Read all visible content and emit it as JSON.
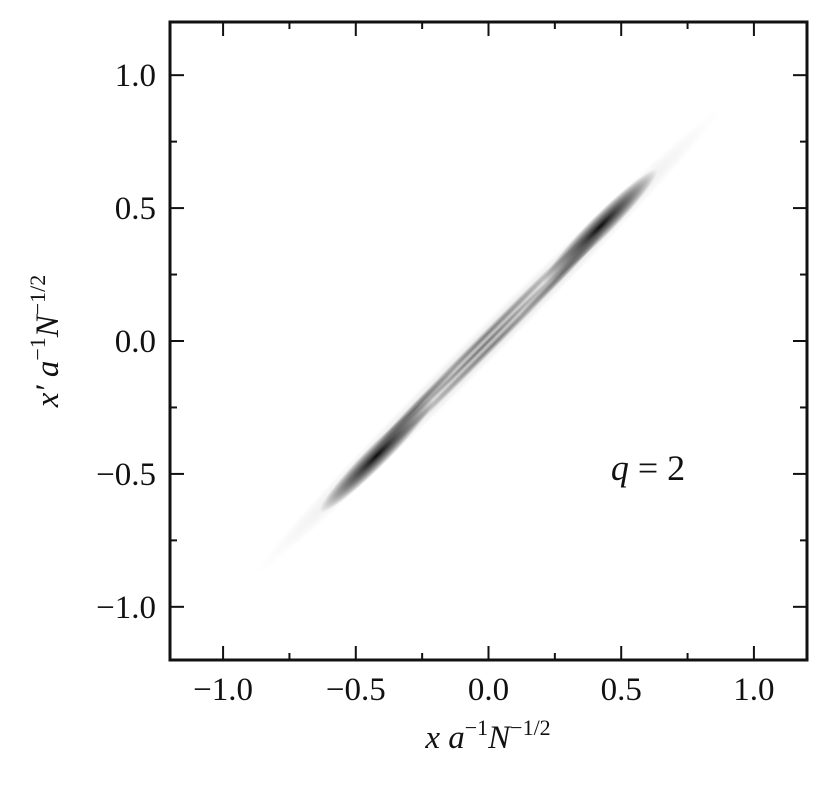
{
  "chart_data": {
    "type": "density",
    "xlabel": {
      "base": "x a",
      "sup1": "−1",
      "mid": "N",
      "sup2": "−1/2"
    },
    "ylabel": {
      "base": "x′ a",
      "sup1": "−1",
      "mid": "N",
      "sup2": "−1/2"
    },
    "annotation": {
      "var": "q",
      "rest": " = 2"
    },
    "xlim": [
      -1.2,
      1.2
    ],
    "ylim": [
      -1.2,
      1.2
    ],
    "xticks": [
      {
        "value": -1.0,
        "label": "−1.0"
      },
      {
        "value": -0.5,
        "label": "−0.5"
      },
      {
        "value": 0.0,
        "label": "0.0"
      },
      {
        "value": 0.5,
        "label": "0.5"
      },
      {
        "value": 1.0,
        "label": "1.0"
      }
    ],
    "yticks": [
      {
        "value": -1.0,
        "label": "−1.0"
      },
      {
        "value": -0.5,
        "label": "−0.5"
      },
      {
        "value": 0.0,
        "label": "0.0"
      },
      {
        "value": 0.5,
        "label": "0.5"
      },
      {
        "value": 1.0,
        "label": "1.0"
      }
    ],
    "xminor": [
      -0.75,
      -0.25,
      0.25,
      0.75
    ],
    "yminor": [
      -0.75,
      -0.25,
      0.25,
      0.75
    ]
  }
}
